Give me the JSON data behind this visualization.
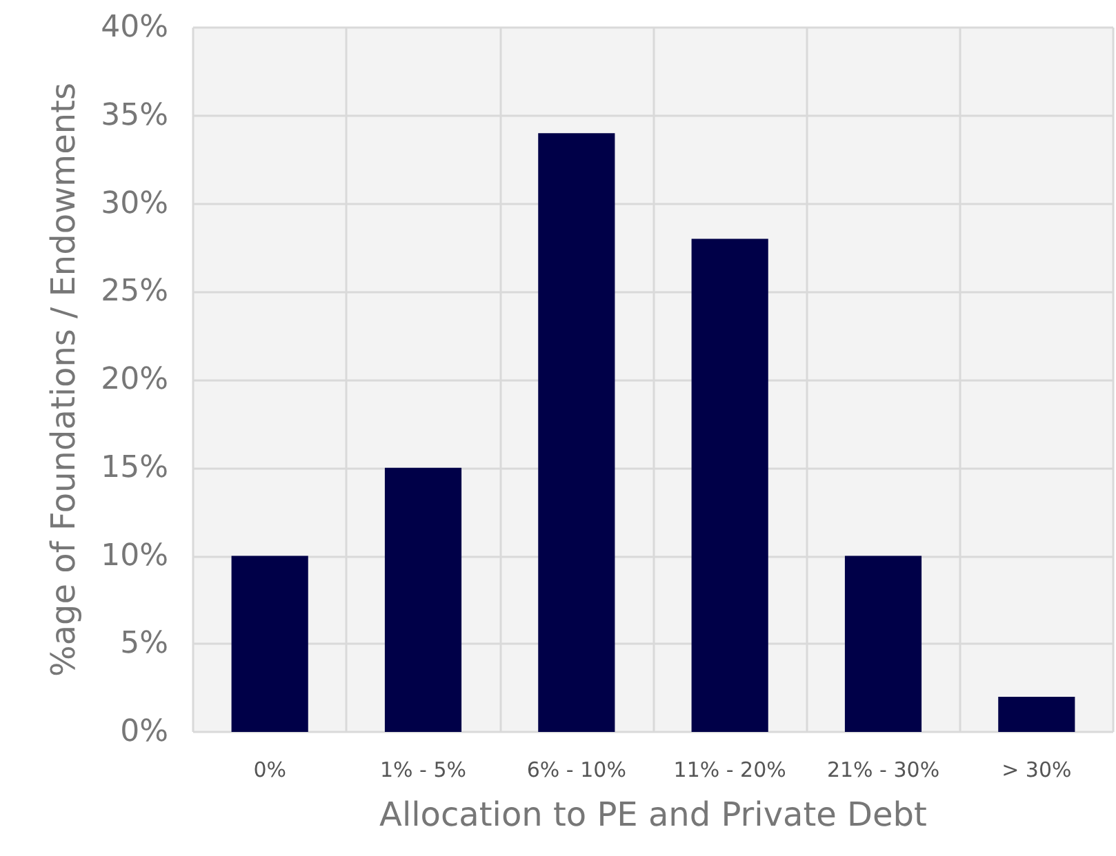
{
  "chart_data": {
    "type": "bar",
    "xlabel": "Allocation to PE and Private Debt",
    "ylabel": "%age of Foundations / Endowments",
    "categories": [
      "0%",
      "1% - 5%",
      "6% - 10%",
      "11% - 20%",
      "21% - 30%",
      "> 30%"
    ],
    "values": [
      10,
      15,
      34,
      28,
      10,
      2
    ],
    "color": "#000048",
    "ylim": [
      0,
      40
    ],
    "yticks": [
      {
        "value": 0,
        "label": "0%"
      },
      {
        "value": 5,
        "label": "5%"
      },
      {
        "value": 10,
        "label": "10%"
      },
      {
        "value": 15,
        "label": "15%"
      },
      {
        "value": 20,
        "label": "20%"
      },
      {
        "value": 25,
        "label": "25%"
      },
      {
        "value": 30,
        "label": "30%"
      },
      {
        "value": 35,
        "label": "35%"
      },
      {
        "value": 40,
        "label": "40%"
      }
    ],
    "grid": true
  }
}
